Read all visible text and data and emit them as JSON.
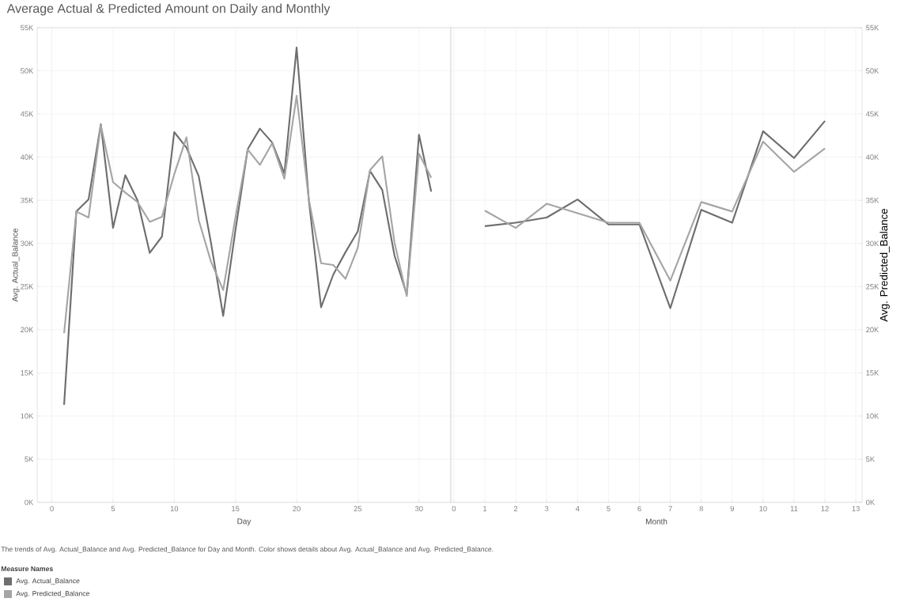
{
  "chart_data": [
    {
      "type": "line",
      "title": "Average Actual & Predicted Amount on Daily and Monthly",
      "xlabel": "Day",
      "ylabel": "Avg. Actual_Balance",
      "legend_title": "Measure Names",
      "legend": "bottom",
      "annotations": [
        "The trends of Avg. Actual_Balance and Avg. Predicted_Balance for Day and Month.  Color shows details about Avg. Actual_Balance and Avg. Predicted_Balance."
      ],
      "x": [
        1,
        2,
        3,
        4,
        5,
        6,
        7,
        8,
        9,
        10,
        11,
        12,
        13,
        14,
        15,
        16,
        17,
        18,
        19,
        20,
        21,
        22,
        23,
        24,
        25,
        26,
        27,
        28,
        29,
        30,
        31
      ],
      "series": [
        {
          "name": "Avg. Actual_Balance",
          "color": "#6e6e6e",
          "values": [
            11300,
            33700,
            35100,
            43800,
            31800,
            37900,
            35000,
            28900,
            30800,
            42900,
            41100,
            37800,
            30100,
            21600,
            31500,
            40900,
            43300,
            41700,
            38100,
            52700,
            35000,
            22600,
            26400,
            29000,
            31400,
            38400,
            36200,
            28600,
            24100,
            42600,
            36000
          ]
        },
        {
          "name": "Avg. Predicted_Balance",
          "color": "#a5a5a5",
          "values": [
            19600,
            33700,
            33000,
            43700,
            37100,
            35900,
            34800,
            32500,
            33100,
            38000,
            42300,
            32700,
            27900,
            24600,
            33000,
            40900,
            39100,
            41600,
            37500,
            47100,
            35100,
            27700,
            27500,
            25900,
            29500,
            38500,
            40100,
            30100,
            23900,
            40400,
            37600
          ]
        }
      ],
      "xlim": [
        -1.2,
        32.6
      ],
      "xticks": [
        0,
        5,
        10,
        15,
        20,
        25,
        30
      ],
      "ylim": [
        0,
        55000
      ],
      "yticks": [
        {
          "value": 0,
          "label": "0K"
        },
        {
          "value": 5000,
          "label": "5K"
        },
        {
          "value": 10000,
          "label": "10K"
        },
        {
          "value": 15000,
          "label": "15K"
        },
        {
          "value": 20000,
          "label": "20K"
        },
        {
          "value": 25000,
          "label": "25K"
        },
        {
          "value": 30000,
          "label": "30K"
        },
        {
          "value": 35000,
          "label": "35K"
        },
        {
          "value": 40000,
          "label": "40K"
        },
        {
          "value": 45000,
          "label": "45K"
        },
        {
          "value": 50000,
          "label": "50K"
        },
        {
          "value": 55000,
          "label": "55K"
        }
      ],
      "ref_lines": [
        {
          "axis": "x",
          "value": 0,
          "color": "#c8c8c8",
          "line_style": "dotted"
        }
      ],
      "grid": true,
      "marker": "none",
      "line_style": "solid"
    },
    {
      "type": "line",
      "xlabel": "Month",
      "y2label": "Avg. Predicted_Balance",
      "x": [
        1,
        2,
        3,
        4,
        5,
        6,
        7,
        8,
        9,
        10,
        11,
        12
      ],
      "series": [
        {
          "color": "#6e6e6e",
          "axis": "y2",
          "values": [
            32000,
            32400,
            33000,
            35100,
            32200,
            32200,
            22500,
            33900,
            32400,
            43000,
            39900,
            44200
          ]
        },
        {
          "color": "#a5a5a5",
          "axis": "y2",
          "values": [
            33800,
            31800,
            34600,
            33500,
            32400,
            32400,
            25700,
            34800,
            33700,
            41800,
            38300,
            41000
          ]
        }
      ],
      "xlim": [
        -0.1,
        13.2
      ],
      "xticks": [
        0,
        1,
        2,
        3,
        4,
        5,
        6,
        7,
        8,
        9,
        10,
        11,
        12,
        13
      ],
      "y2lim": [
        0,
        55000
      ],
      "y2ticks": [
        {
          "value": 0,
          "label": "0K"
        },
        {
          "value": 5000,
          "label": "5K"
        },
        {
          "value": 10000,
          "label": "10K"
        },
        {
          "value": 15000,
          "label": "15K"
        },
        {
          "value": 20000,
          "label": "20K"
        },
        {
          "value": 25000,
          "label": "25K"
        },
        {
          "value": 30000,
          "label": "30K"
        },
        {
          "value": 35000,
          "label": "35K"
        },
        {
          "value": 40000,
          "label": "40K"
        },
        {
          "value": 45000,
          "label": "45K"
        },
        {
          "value": 50000,
          "label": "50K"
        },
        {
          "value": 55000,
          "label": "55K"
        }
      ],
      "grid": true,
      "marker": "none",
      "line_style": "solid"
    }
  ]
}
